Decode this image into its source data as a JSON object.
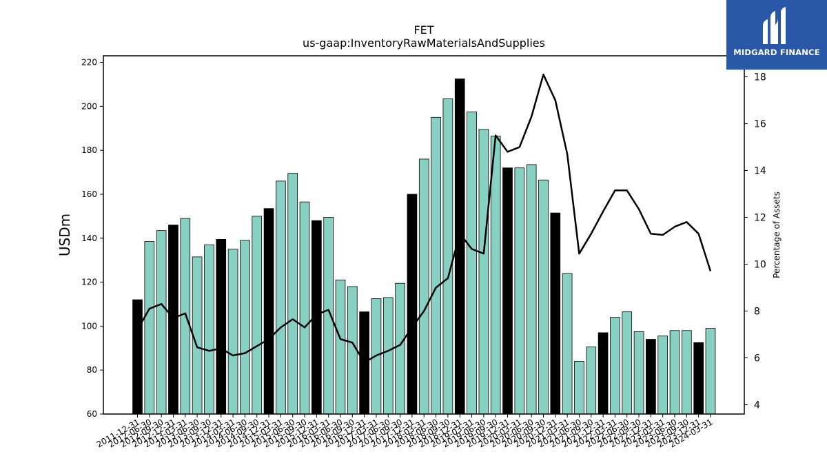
{
  "logo": {
    "text": "MIDGARD FINANCE",
    "icon": "midgard-logo-icon",
    "bg_color": "#2a57a8"
  },
  "chart_data": {
    "type": "bar",
    "title": "FET",
    "subtitle": "us-gaap:InventoryRawMaterialsAndSupplies",
    "ylabel": "USDm",
    "y2label": "Percentage of Assets",
    "ylim": [
      60,
      223
    ],
    "y2lim": [
      3.6,
      18.9
    ],
    "yticks": [
      60,
      80,
      100,
      120,
      140,
      160,
      180,
      200,
      220
    ],
    "y2ticks": [
      4,
      6,
      8,
      10,
      12,
      14,
      16,
      18
    ],
    "grid": false,
    "colors": {
      "annual": "#000000",
      "quarterly": "#88d0c2",
      "line": "#000000"
    },
    "categories": [
      "2011-12-31",
      "2012-06-30",
      "2012-09-30",
      "2012-12-31",
      "2013-03-31",
      "2013-06-30",
      "2013-09-30",
      "2013-12-31",
      "2014-03-31",
      "2014-06-30",
      "2014-09-30",
      "2014-12-31",
      "2015-03-31",
      "2015-06-30",
      "2015-09-30",
      "2015-12-31",
      "2016-03-31",
      "2016-06-30",
      "2016-09-30",
      "2016-12-31",
      "2017-03-31",
      "2017-06-30",
      "2017-09-30",
      "2017-12-31",
      "2018-03-31",
      "2018-06-30",
      "2018-09-30",
      "2018-12-31",
      "2019-03-31",
      "2019-06-30",
      "2019-09-30",
      "2019-12-31",
      "2020-03-31",
      "2020-06-30",
      "2020-09-30",
      "2020-12-31",
      "2021-03-31",
      "2021-06-30",
      "2021-09-30",
      "2021-12-31",
      "2022-03-31",
      "2022-06-30",
      "2022-09-30",
      "2022-12-31",
      "2023-03-31",
      "2023-06-30",
      "2023-09-30",
      "2023-12-31",
      "2024-03-31"
    ],
    "series": [
      {
        "kind": "bar",
        "values": [
          112,
          138.5,
          143.5,
          146,
          149,
          131.5,
          137,
          139.5,
          135,
          139,
          150,
          153.5,
          166,
          169.5,
          156.5,
          148,
          149.5,
          121,
          118,
          106.5,
          112.5,
          113,
          119.5,
          160,
          176,
          195,
          203.5,
          212.5,
          197.5,
          189.5,
          186.5,
          172,
          172,
          173.5,
          166.5,
          151.5,
          124,
          84,
          90.5,
          97,
          104,
          106.5,
          97.5,
          94,
          95.5,
          98,
          98,
          92.5,
          99
        ],
        "annual": [
          true,
          false,
          false,
          true,
          false,
          false,
          false,
          true,
          false,
          false,
          false,
          true,
          false,
          false,
          false,
          true,
          false,
          false,
          false,
          true,
          false,
          false,
          false,
          true,
          false,
          false,
          false,
          true,
          false,
          false,
          false,
          true,
          false,
          false,
          false,
          true,
          false,
          false,
          false,
          true,
          false,
          false,
          false,
          true,
          false,
          false,
          false,
          true,
          false
        ]
      },
      {
        "kind": "line",
        "axis": "right",
        "values": [
          7.2,
          8.1,
          8.3,
          7.7,
          7.9,
          6.45,
          6.3,
          6.4,
          6.1,
          6.2,
          6.5,
          6.8,
          7.3,
          7.65,
          7.3,
          7.85,
          8.05,
          6.8,
          6.65,
          5.8,
          6.1,
          6.3,
          6.55,
          7.3,
          8.0,
          9.0,
          9.4,
          11.3,
          10.65,
          10.45,
          15.5,
          14.8,
          15.0,
          16.3,
          18.1,
          17.0,
          14.7,
          10.45,
          11.3,
          12.25,
          13.15,
          13.15,
          12.35,
          11.3,
          11.25,
          11.6,
          11.8,
          11.3,
          9.7
        ]
      }
    ]
  }
}
